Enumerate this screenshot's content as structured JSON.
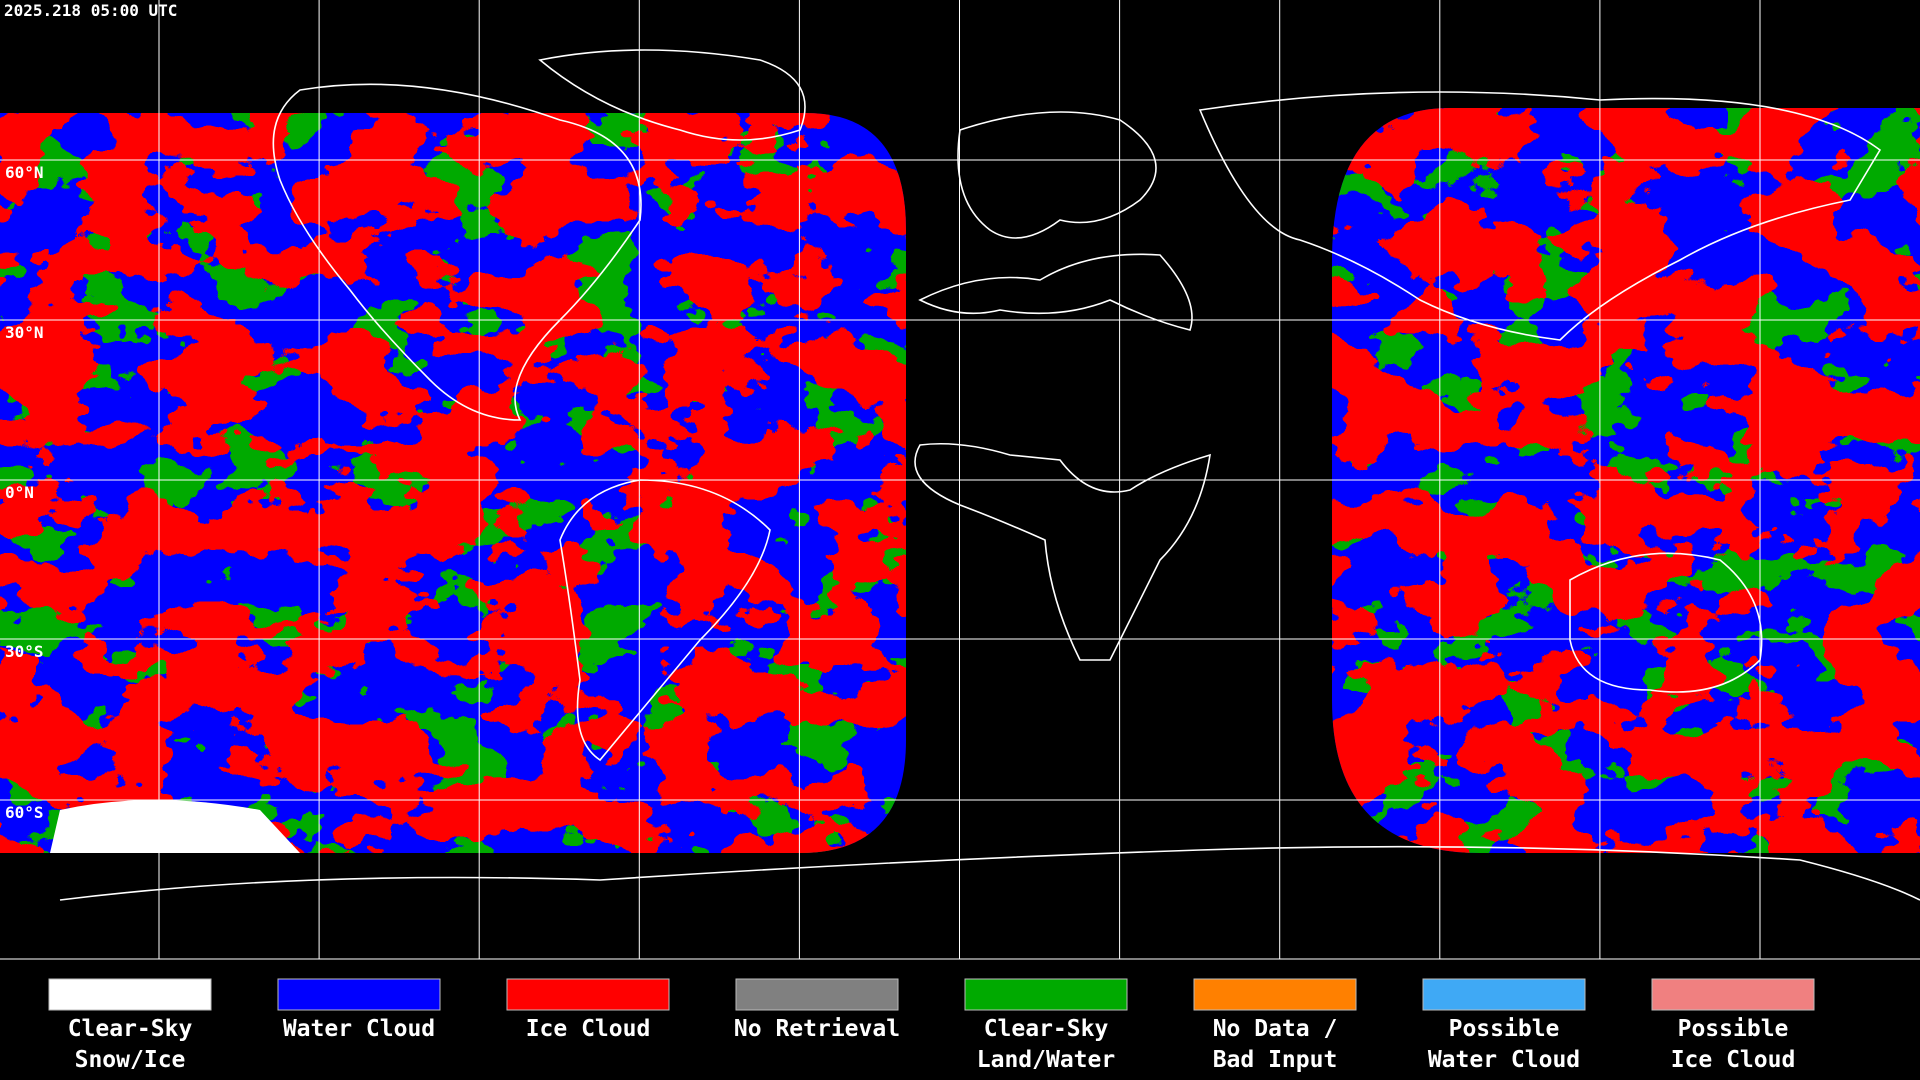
{
  "timestamp": "2025.218 05:00 UTC",
  "lat_labels": [
    "60°N",
    "30°N",
    "0°N",
    "30°S",
    "60°S"
  ],
  "legend": [
    {
      "label": [
        "Clear-Sky",
        "Snow/Ice"
      ],
      "color": "#ffffff"
    },
    {
      "label": [
        "Water Cloud"
      ],
      "color": "#0000ff"
    },
    {
      "label": [
        "Ice Cloud"
      ],
      "color": "#ff0000"
    },
    {
      "label": [
        "No Retrieval"
      ],
      "color": "#808080"
    },
    {
      "label": [
        "Clear-Sky",
        "Land/Water"
      ],
      "color": "#00aa00"
    },
    {
      "label": [
        "No Data /",
        "Bad Input"
      ],
      "color": "#ff8000"
    },
    {
      "label": [
        "Possible",
        "Water Cloud"
      ],
      "color": "#3fa9f5"
    },
    {
      "label": [
        "Possible",
        "Ice Cloud"
      ],
      "color": "#f08080"
    }
  ]
}
